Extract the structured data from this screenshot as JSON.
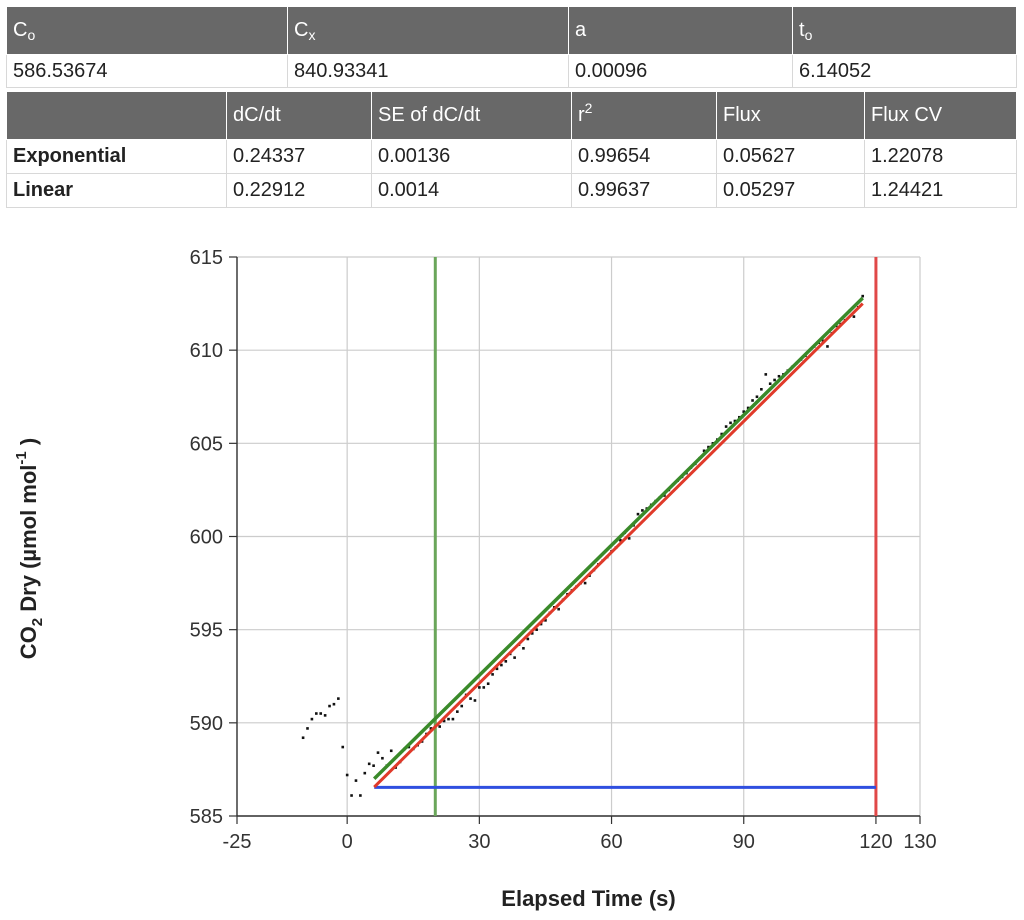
{
  "params_table": {
    "headers": [
      {
        "base": "C",
        "sub": "o"
      },
      {
        "base": "C",
        "sub": "x"
      },
      {
        "base": "a",
        "sub": ""
      },
      {
        "base": "t",
        "sub": "o"
      }
    ],
    "values": [
      "586.53674",
      "840.93341",
      "0.00096",
      "6.14052"
    ]
  },
  "fit_table": {
    "headers": [
      {
        "base": "",
        "sup": ""
      },
      {
        "base": "dC/dt",
        "sup": ""
      },
      {
        "base": "SE of dC/dt",
        "sup": ""
      },
      {
        "base": "r",
        "sup": "2"
      },
      {
        "base": "Flux",
        "sup": ""
      },
      {
        "base": "Flux CV",
        "sup": ""
      }
    ],
    "rows": [
      [
        "Exponential",
        "0.24337",
        "0.00136",
        "0.99654",
        "0.05627",
        "1.22078"
      ],
      [
        "Linear",
        "0.22912",
        "0.0014",
        "0.99637",
        "0.05297",
        "1.24421"
      ]
    ]
  },
  "chart_data": {
    "type": "scatter",
    "xlabel": "Elapsed Time (s)",
    "ylabel": {
      "main": "CO",
      "sub": "2",
      "mid": " Dry (µmol mol",
      "sup": "-1",
      "end": " )"
    },
    "xlim": [
      -25,
      130
    ],
    "ylim": [
      585,
      615
    ],
    "xticks": [
      -25,
      0,
      30,
      60,
      90,
      120,
      130
    ],
    "yticks": [
      585,
      590,
      595,
      600,
      605,
      610,
      615
    ],
    "grid": true,
    "points_x": [
      -10,
      -9,
      -8,
      -7,
      -6,
      -5,
      -4,
      -3,
      -2,
      -1,
      0,
      1,
      2,
      3,
      4,
      5,
      6,
      7,
      8,
      9,
      10,
      11,
      12,
      13,
      14,
      15,
      16,
      17,
      18,
      19,
      20,
      21,
      22,
      23,
      24,
      25,
      26,
      27,
      28,
      29,
      30,
      31,
      32,
      33,
      34,
      35,
      36,
      37,
      38,
      39,
      40,
      41,
      42,
      43,
      44,
      45,
      46,
      47,
      48,
      49,
      50,
      51,
      52,
      53,
      54,
      55,
      56,
      57,
      58,
      59,
      60,
      61,
      62,
      63,
      64,
      65,
      66,
      67,
      68,
      69,
      70,
      71,
      72,
      73,
      74,
      75,
      76,
      77,
      78,
      79,
      80,
      81,
      82,
      83,
      84,
      85,
      86,
      87,
      88,
      89,
      90,
      91,
      92,
      93,
      94,
      95,
      96,
      97,
      98,
      99,
      100,
      101,
      102,
      103,
      104,
      105,
      106,
      107,
      108,
      109,
      110,
      111,
      112,
      113,
      114,
      115,
      116,
      117
    ],
    "points_y": [
      589.2,
      589.7,
      590.2,
      590.5,
      590.5,
      590.4,
      590.9,
      591.0,
      591.3,
      588.7,
      587.2,
      586.1,
      586.9,
      586.1,
      587.3,
      587.8,
      587.7,
      588.4,
      588.1,
      587.7,
      588.5,
      587.6,
      587.9,
      588.6,
      588.7,
      588.6,
      588.8,
      589.0,
      589.4,
      589.7,
      589.5,
      589.8,
      590.1,
      590.2,
      590.2,
      590.6,
      590.9,
      591.5,
      591.3,
      591.2,
      591.9,
      591.9,
      592.1,
      592.6,
      592.9,
      593.1,
      593.3,
      593.7,
      593.5,
      594.2,
      594.0,
      594.5,
      594.8,
      595.0,
      595.3,
      595.5,
      595.9,
      596.2,
      596.1,
      596.6,
      596.9,
      597.1,
      597.3,
      597.5,
      597.5,
      597.9,
      598.2,
      598.5,
      598.7,
      598.9,
      599.2,
      599.4,
      599.8,
      600.2,
      599.9,
      600.6,
      601.2,
      601.4,
      601.5,
      601.7,
      601.9,
      602.1,
      602.2,
      602.5,
      602.8,
      603.0,
      603.2,
      603.4,
      603.7,
      603.9,
      604.2,
      604.6,
      604.8,
      605.0,
      605.2,
      605.5,
      605.9,
      606.1,
      606.2,
      606.4,
      606.7,
      606.9,
      607.3,
      607.5,
      607.9,
      608.7,
      608.2,
      608.4,
      608.6,
      608.7,
      608.9,
      609.1,
      609.3,
      609.5,
      609.7,
      610.0,
      610.2,
      610.4,
      610.5,
      610.2,
      610.9,
      611.3,
      611.4,
      611.6,
      612.1,
      611.8,
      612.3,
      612.9
    ],
    "exp_fit": {
      "x": [
        6.14,
        117
      ],
      "y": [
        587.0,
        612.8
      ],
      "color": "#3a8a2a"
    },
    "lin_fit": {
      "x": [
        6.14,
        117
      ],
      "y": [
        586.55,
        612.5
      ],
      "color": "#e03a2a"
    },
    "baseline": {
      "x": [
        6.14,
        120
      ],
      "y": 586.53674,
      "color": "#2f4fe0"
    },
    "start_marker": {
      "x": 20,
      "color": "#6aa65a"
    },
    "end_marker": {
      "x": 120,
      "color": "#e04848"
    }
  }
}
